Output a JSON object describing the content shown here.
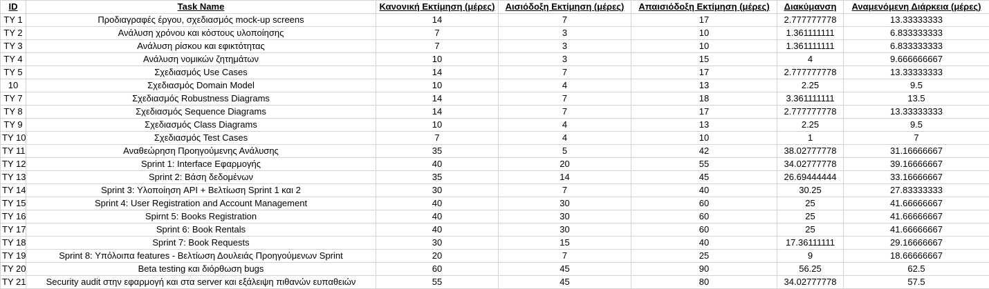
{
  "columns": [
    "ID",
    "Task Name",
    "Κανονική Εκτίμηση (μέρες)",
    "Αισιόδοξη Εκτίμηση (μέρες)",
    "Απαισιόδοξη Εκτίμηση (μέρες)",
    "Διακύμανση",
    "Αναμενόμενη Διάρκεια (μέρες)"
  ],
  "rows": [
    [
      "TY 1",
      "Προδιαγραφές έργου, σχεδιασμός mock-up screens",
      "14",
      "7",
      "17",
      "2.777777778",
      "13.33333333"
    ],
    [
      "TY 2",
      "Ανάλυση χρόνου και κόστους υλοποίησης",
      "7",
      "3",
      "10",
      "1.361111111",
      "6.833333333"
    ],
    [
      "TY 3",
      "Ανάλυση ρίσκου και εφικτότητας",
      "7",
      "3",
      "10",
      "1.361111111",
      "6.833333333"
    ],
    [
      "TY 4",
      "Ανάλυση νομικών ζητημάτων",
      "10",
      "3",
      "15",
      "4",
      "9.666666667"
    ],
    [
      "TY 5",
      "Σχεδιασμός Use Cases",
      "14",
      "7",
      "17",
      "2.777777778",
      "13.33333333"
    ],
    [
      "10",
      "Σχεδιασμός Domain Model",
      "10",
      "4",
      "13",
      "2.25",
      "9.5"
    ],
    [
      "TY 7",
      "Σχεδιασμός Robustness Diagrams",
      "14",
      "7",
      "18",
      "3.361111111",
      "13.5"
    ],
    [
      "TY 8",
      "Σχεδιασμός Sequence Diagrams",
      "14",
      "7",
      "17",
      "2.777777778",
      "13.33333333"
    ],
    [
      "TY 9",
      "Σχεδιασμός Class Diagrams",
      "10",
      "4",
      "13",
      "2.25",
      "9.5"
    ],
    [
      "TY 10",
      "Σχεδιασμός Test Cases",
      "7",
      "4",
      "10",
      "1",
      "7"
    ],
    [
      "TY 11",
      "Αναθεώρηση Προηγούμενης Ανάλυσης",
      "35",
      "5",
      "42",
      "38.02777778",
      "31.16666667"
    ],
    [
      "TY 12",
      "Sprint 1: Interface Εφαρμογής",
      "40",
      "20",
      "55",
      "34.02777778",
      "39.16666667"
    ],
    [
      "TY 13",
      "Sprint 2: Βάση δεδομένων",
      "35",
      "14",
      "45",
      "26.69444444",
      "33.16666667"
    ],
    [
      "TY 14",
      "Sprint 3: Υλοποίηση API + Βελτίωση Sprint 1 και 2",
      "30",
      "7",
      "40",
      "30.25",
      "27.83333333"
    ],
    [
      "TY 15",
      "Sprint 4: User Registration and Account Management",
      "40",
      "30",
      "60",
      "25",
      "41.66666667"
    ],
    [
      "TY 16",
      "Spirnt 5: Books Registration",
      "40",
      "30",
      "60",
      "25",
      "41.66666667"
    ],
    [
      "TY 17",
      "Sprint 6: Book Rentals",
      "40",
      "30",
      "60",
      "25",
      "41.66666667"
    ],
    [
      "TY 18",
      "Sprint 7: Book Requests",
      "30",
      "15",
      "40",
      "17.36111111",
      "29.16666667"
    ],
    [
      "TY 19",
      "Sprint 8: Υπόλοιπα features - Βελτίωση Δουλειάς Προηγούμενων Sprint",
      "20",
      "7",
      "25",
      "9",
      "18.66666667"
    ],
    [
      "TY 20",
      "Beta testing και διόρθωση bugs",
      "60",
      "45",
      "90",
      "56.25",
      "62.5"
    ],
    [
      "TY 21",
      "Security audit στην εφαρμογή και στα server και εξάλειψη πιθανών ευπαθειών",
      "55",
      "45",
      "80",
      "34.02777778",
      "57.5"
    ]
  ]
}
